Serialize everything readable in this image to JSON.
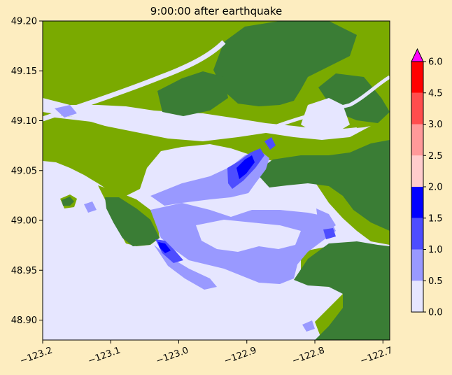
{
  "chart_data": {
    "type": "heatmap",
    "title": "9:00:00 after earthquake",
    "xlabel": "",
    "ylabel": "",
    "xlim": [
      -123.2,
      -122.69
    ],
    "ylim": [
      48.88,
      49.2
    ],
    "x_ticks": [
      -123.2,
      -123.1,
      -123.0,
      -122.9,
      -122.8,
      -122.7
    ],
    "x_tick_labels": [
      "−123.2",
      "−123.1",
      "−123.0",
      "−122.9",
      "−122.8",
      "−122.7"
    ],
    "y_ticks": [
      48.9,
      48.95,
      49.0,
      49.05,
      49.1,
      49.15,
      49.2
    ],
    "y_tick_labels": [
      "48.90",
      "48.95",
      "49.00",
      "49.05",
      "49.10",
      "49.15",
      "49.20"
    ],
    "colorbar": {
      "levels": [
        0.0,
        0.5,
        1.0,
        1.5,
        2.0,
        2.5,
        3.0,
        4.5,
        6.0
      ],
      "tick_labels": [
        "0.0",
        "0.5",
        "1.0",
        "1.5",
        "2.0",
        "2.5",
        "3.0",
        "4.5",
        "6.0"
      ],
      "colors": [
        "#e6e6ff",
        "#9999ff",
        "#4d4dff",
        "#0000ff",
        "#ffcccc",
        "#ff9999",
        "#ff4d4d",
        "#ff0000"
      ],
      "extend_max_color": "#ff00ff"
    },
    "background_colors": {
      "land_low": "#7aaa00",
      "land_high": "#3a7d35",
      "water_base": "#e6e6ff"
    }
  }
}
